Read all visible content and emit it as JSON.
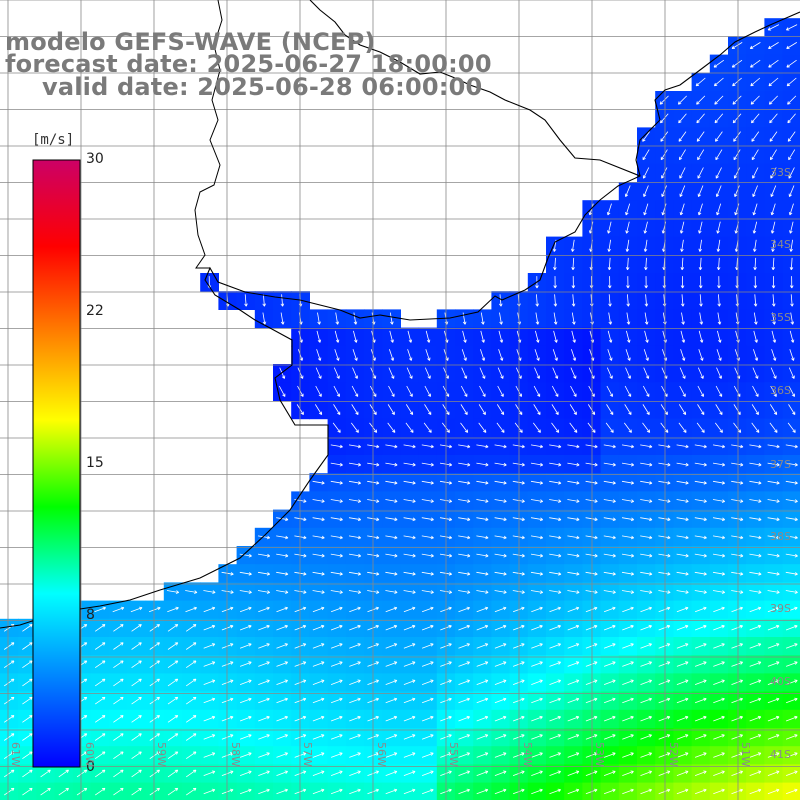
{
  "title": {
    "line1": "modelo GEFS-WAVE (NCEP)",
    "line2": "forecast date: 2025-06-27 18:00:00",
    "line3": "valid date: 2025-06-28 06:00:00"
  },
  "colorbar": {
    "unit": "[m/s]",
    "min": 0,
    "max": 30,
    "ticks": [
      "30",
      "22",
      "15",
      "8",
      "0"
    ],
    "colors": [
      "#0000ff",
      "#0080ff",
      "#00ffff",
      "#00ff00",
      "#ffff00",
      "#ff8000",
      "#ff0000",
      "#cc0066"
    ]
  },
  "map": {
    "lat_labels": [
      "33S",
      "34S",
      "35S",
      "36S",
      "37S",
      "38S",
      "39S",
      "40S",
      "41S"
    ],
    "lon_labels": [
      "61W",
      "60W",
      "59W",
      "58W",
      "57W",
      "56W",
      "55W",
      "54W",
      "53W",
      "52W",
      "51W"
    ],
    "land_color": "#ffffff",
    "grid_color": "#888888",
    "coast_color": "#000000",
    "arrow_color": "#ffffff"
  }
}
